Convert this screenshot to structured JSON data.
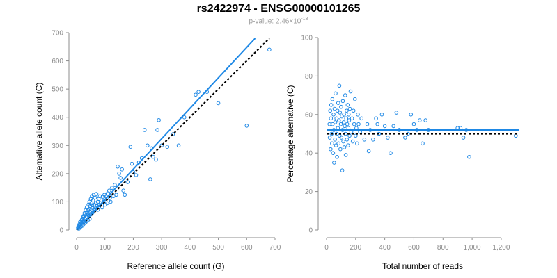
{
  "header": {
    "title": "rs2422974 - ENSG00000101265",
    "pvalue_prefix": "p-value: 2.46×10",
    "pvalue_exp": "-13"
  },
  "colors": {
    "points": "#1e88e5",
    "fit": "#1e88e5",
    "reference": "#000000",
    "axis": "#8c8c8c"
  },
  "chart_data": [
    {
      "type": "scatter",
      "xlabel": "Reference allele count (G)",
      "ylabel": "Alternative allele count (C)",
      "xlim": [
        0,
        700
      ],
      "ylim": [
        0,
        700
      ],
      "xticks": [
        0,
        100,
        200,
        300,
        400,
        500,
        600,
        700
      ],
      "yticks": [
        0,
        100,
        200,
        300,
        400,
        500,
        600,
        700
      ],
      "xtick_labels": [
        "0",
        "100",
        "200",
        "300",
        "400",
        "500",
        "600",
        "700"
      ],
      "ytick_labels": [
        "0",
        "100",
        "200",
        "300",
        "400",
        "500",
        "600",
        "700"
      ],
      "points": [
        [
          5,
          8
        ],
        [
          6,
          12
        ],
        [
          8,
          5
        ],
        [
          9,
          15
        ],
        [
          10,
          20
        ],
        [
          12,
          10
        ],
        [
          12,
          28
        ],
        [
          13,
          18
        ],
        [
          15,
          30
        ],
        [
          15,
          12
        ],
        [
          16,
          22
        ],
        [
          18,
          35
        ],
        [
          18,
          25
        ],
        [
          20,
          15
        ],
        [
          20,
          40
        ],
        [
          22,
          28
        ],
        [
          22,
          45
        ],
        [
          24,
          20
        ],
        [
          25,
          35
        ],
        [
          25,
          50
        ],
        [
          27,
          30
        ],
        [
          28,
          60
        ],
        [
          28,
          42
        ],
        [
          30,
          25
        ],
        [
          30,
          55
        ],
        [
          32,
          38
        ],
        [
          32,
          70
        ],
        [
          34,
          48
        ],
        [
          35,
          30
        ],
        [
          35,
          62
        ],
        [
          36,
          80
        ],
        [
          38,
          45
        ],
        [
          38,
          55
        ],
        [
          40,
          35
        ],
        [
          40,
          70
        ],
        [
          42,
          90
        ],
        [
          42,
          60
        ],
        [
          44,
          50
        ],
        [
          45,
          75
        ],
        [
          45,
          100
        ],
        [
          46,
          40
        ],
        [
          48,
          85
        ],
        [
          48,
          65
        ],
        [
          50,
          110
        ],
        [
          50,
          55
        ],
        [
          52,
          72
        ],
        [
          52,
          95
        ],
        [
          54,
          120
        ],
        [
          55,
          60
        ],
        [
          55,
          88
        ],
        [
          57,
          78
        ],
        [
          58,
          105
        ],
        [
          60,
          65
        ],
        [
          60,
          125
        ],
        [
          62,
          90
        ],
        [
          63,
          70
        ],
        [
          65,
          115
        ],
        [
          65,
          80
        ],
        [
          68,
          95
        ],
        [
          70,
          128
        ],
        [
          72,
          85
        ],
        [
          75,
          100
        ],
        [
          75,
          72
        ],
        [
          78,
          110
        ],
        [
          80,
          88
        ],
        [
          82,
          120
        ],
        [
          85,
          95
        ],
        [
          88,
          105
        ],
        [
          90,
          80
        ],
        [
          92,
          118
        ],
        [
          95,
          100
        ],
        [
          98,
          125
        ],
        [
          100,
          90
        ],
        [
          102,
          110
        ],
        [
          105,
          120
        ],
        [
          108,
          95
        ],
        [
          110,
          130
        ],
        [
          112,
          105
        ],
        [
          115,
          140
        ],
        [
          118,
          115
        ],
        [
          120,
          100
        ],
        [
          125,
          150
        ],
        [
          130,
          120
        ],
        [
          135,
          160
        ],
        [
          140,
          125
        ],
        [
          145,
          225
        ],
        [
          150,
          200
        ],
        [
          155,
          185
        ],
        [
          160,
          215
        ],
        [
          165,
          140
        ],
        [
          170,
          125
        ],
        [
          180,
          170
        ],
        [
          190,
          295
        ],
        [
          195,
          235
        ],
        [
          200,
          205
        ],
        [
          210,
          195
        ],
        [
          220,
          240
        ],
        [
          230,
          255
        ],
        [
          240,
          355
        ],
        [
          250,
          300
        ],
        [
          260,
          180
        ],
        [
          265,
          290
        ],
        [
          270,
          260
        ],
        [
          280,
          250
        ],
        [
          285,
          355
        ],
        [
          290,
          390
        ],
        [
          300,
          300
        ],
        [
          320,
          295
        ],
        [
          340,
          340
        ],
        [
          360,
          300
        ],
        [
          380,
          400
        ],
        [
          420,
          480
        ],
        [
          430,
          490
        ],
        [
          460,
          490
        ],
        [
          500,
          450
        ],
        [
          600,
          370
        ],
        [
          680,
          640
        ]
      ],
      "fit_line": {
        "x": [
          0,
          630
        ],
        "y": [
          0,
          680
        ]
      },
      "reference_line": {
        "x": [
          0,
          680
        ],
        "y": [
          0,
          680
        ]
      }
    },
    {
      "type": "scatter",
      "xlabel": "Total number of reads",
      "ylabel": "Percentage alternative (C)",
      "xlim": [
        0,
        1320
      ],
      "ylim": [
        0,
        100
      ],
      "xticks": [
        0,
        200,
        400,
        600,
        800,
        1000,
        1200
      ],
      "yticks": [
        0,
        20,
        40,
        60,
        80,
        100
      ],
      "xtick_labels": [
        "0",
        "200",
        "400",
        "600",
        "800",
        "1,000",
        "1,200"
      ],
      "ytick_labels": [
        "0",
        "20",
        "40",
        "60",
        "80",
        "100"
      ],
      "points": [
        [
          20,
          55
        ],
        [
          22,
          48
        ],
        [
          25,
          62
        ],
        [
          28,
          42
        ],
        [
          30,
          58
        ],
        [
          32,
          65
        ],
        [
          35,
          50
        ],
        [
          38,
          45
        ],
        [
          40,
          68
        ],
        [
          42,
          55
        ],
        [
          45,
          40
        ],
        [
          48,
          60
        ],
        [
          50,
          52
        ],
        [
          52,
          35
        ],
        [
          55,
          63
        ],
        [
          58,
          47
        ],
        [
          60,
          56
        ],
        [
          62,
          71
        ],
        [
          65,
          44
        ],
        [
          68,
          58
        ],
        [
          70,
          50
        ],
        [
          72,
          38
        ],
        [
          75,
          62
        ],
        [
          78,
          53
        ],
        [
          80,
          66
        ],
        [
          82,
          45
        ],
        [
          85,
          57
        ],
        [
          88,
          75
        ],
        [
          90,
          49
        ],
        [
          92,
          61
        ],
        [
          95,
          42
        ],
        [
          98,
          55
        ],
        [
          100,
          64
        ],
        [
          102,
          48
        ],
        [
          105,
          59
        ],
        [
          108,
          31
        ],
        [
          110,
          52
        ],
        [
          112,
          67
        ],
        [
          115,
          46
        ],
        [
          118,
          56
        ],
        [
          120,
          60
        ],
        [
          122,
          43
        ],
        [
          125,
          54
        ],
        [
          128,
          70
        ],
        [
          130,
          50
        ],
        [
          132,
          39
        ],
        [
          135,
          58
        ],
        [
          138,
          62
        ],
        [
          140,
          47
        ],
        [
          142,
          55
        ],
        [
          145,
          65
        ],
        [
          148,
          44
        ],
        [
          150,
          53
        ],
        [
          152,
          60
        ],
        [
          155,
          57
        ],
        [
          158,
          49
        ],
        [
          160,
          63
        ],
        [
          165,
          72
        ],
        [
          170,
          51
        ],
        [
          175,
          58
        ],
        [
          180,
          46
        ],
        [
          185,
          62
        ],
        [
          190,
          55
        ],
        [
          195,
          68
        ],
        [
          200,
          49
        ],
        [
          205,
          53
        ],
        [
          210,
          45
        ],
        [
          215,
          60
        ],
        [
          220,
          55
        ],
        [
          230,
          51
        ],
        [
          240,
          58
        ],
        [
          260,
          47
        ],
        [
          280,
          55
        ],
        [
          290,
          41
        ],
        [
          300,
          52
        ],
        [
          320,
          47
        ],
        [
          340,
          58
        ],
        [
          350,
          55
        ],
        [
          360,
          50
        ],
        [
          380,
          60
        ],
        [
          400,
          54
        ],
        [
          420,
          48
        ],
        [
          440,
          40
        ],
        [
          460,
          54
        ],
        [
          480,
          61
        ],
        [
          500,
          52
        ],
        [
          540,
          48
        ],
        [
          560,
          50
        ],
        [
          580,
          60
        ],
        [
          600,
          55
        ],
        [
          620,
          52
        ],
        [
          640,
          57
        ],
        [
          660,
          45
        ],
        [
          680,
          57
        ],
        [
          700,
          52
        ],
        [
          900,
          53
        ],
        [
          920,
          53
        ],
        [
          940,
          48
        ],
        [
          960,
          52
        ],
        [
          980,
          38
        ],
        [
          1300,
          49
        ]
      ],
      "fit_line": {
        "x": [
          0,
          1320
        ],
        "y": [
          52,
          52
        ]
      },
      "reference_line": {
        "x": [
          0,
          1320
        ],
        "y": [
          50,
          50
        ]
      }
    }
  ]
}
